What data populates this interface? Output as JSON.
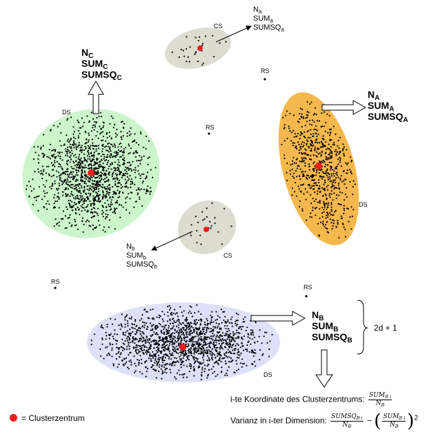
{
  "colors": {
    "green_cluster": "#ccf5cc",
    "orange_cluster": "#f5b84d",
    "blue_cluster": "#dde0f8",
    "grey_cluster": "#dcdcd0",
    "center": "#ee1c1c",
    "points": "#000000"
  },
  "labels": {
    "ds": "DS",
    "cs": "CS",
    "rs": "RS"
  },
  "stats_c": {
    "n": "N",
    "sum": "SUM",
    "sumsq": "SUMSQ",
    "sub": "C"
  },
  "stats_a": {
    "n": "N",
    "sum": "SUM",
    "sumsq": "SUMSQ",
    "sub": "A"
  },
  "stats_b": {
    "n": "N",
    "sum": "SUM",
    "sumsq": "SUMSQ",
    "sub": "B"
  },
  "stats_a_small": {
    "n": "N",
    "sum": "SUM",
    "sumsq": "SUMSQ",
    "sub": "a"
  },
  "stats_b_small": {
    "n": "N",
    "sum": "SUM",
    "sumsq": "SUMSQ",
    "sub": "b"
  },
  "brace_label": "2d + 1",
  "formula1": {
    "prefix": "i-te Koordinate des Clusterzentrums:",
    "num": "SUM",
    "num_sub": "B i",
    "den": "N",
    "den_sub": "B"
  },
  "formula2": {
    "prefix": "Varianz in i-ter Dimension:",
    "num1": "SUMSQ",
    "num1_sub": "B i",
    "den1": "N",
    "den1_sub": "B",
    "minus": "−",
    "num2": "SUM",
    "num2_sub": "B i",
    "den2": "N",
    "den2_sub": "B",
    "exp": "2"
  },
  "legend": {
    "text": "= Clusterzentrum"
  }
}
